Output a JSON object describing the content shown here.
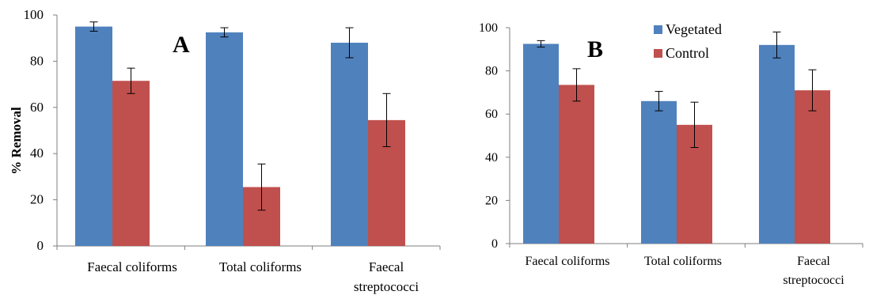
{
  "chart_data": [
    {
      "type": "bar",
      "panel_label": "A",
      "ylabel": "% Removal",
      "ylim": [
        0,
        100
      ],
      "yticks": [
        0,
        20,
        40,
        60,
        80,
        100
      ],
      "categories": [
        [
          "Faecal coliforms"
        ],
        [
          "Total coliforms"
        ],
        [
          "Faecal",
          "streptococci"
        ]
      ],
      "series": [
        {
          "name": "Vegetated",
          "values": [
            95,
            92.5,
            88
          ],
          "errors": [
            2.0,
            2.0,
            6.5
          ]
        },
        {
          "name": "Control",
          "values": [
            71.5,
            25.5,
            54.5
          ],
          "errors": [
            5.5,
            10.0,
            11.5
          ]
        }
      ],
      "colors": [
        "#4f81bd",
        "#c0504d"
      ],
      "grid": false,
      "legend": "none"
    },
    {
      "type": "bar",
      "panel_label": "B",
      "ylabel": "",
      "ylim": [
        0,
        100
      ],
      "yticks": [
        0,
        20,
        40,
        60,
        80,
        100
      ],
      "categories": [
        [
          "Faecal coliforms"
        ],
        [
          "Total coliforms"
        ],
        [
          "Faecal",
          "streptococci"
        ]
      ],
      "series": [
        {
          "name": "Vegetated",
          "values": [
            92.5,
            66,
            92
          ],
          "errors": [
            1.5,
            4.5,
            6.0
          ]
        },
        {
          "name": "Control",
          "values": [
            73.5,
            55,
            71
          ],
          "errors": [
            7.5,
            10.5,
            9.5
          ]
        }
      ],
      "colors": [
        "#4f81bd",
        "#c0504d"
      ],
      "grid": false,
      "legend": "top-left"
    }
  ]
}
